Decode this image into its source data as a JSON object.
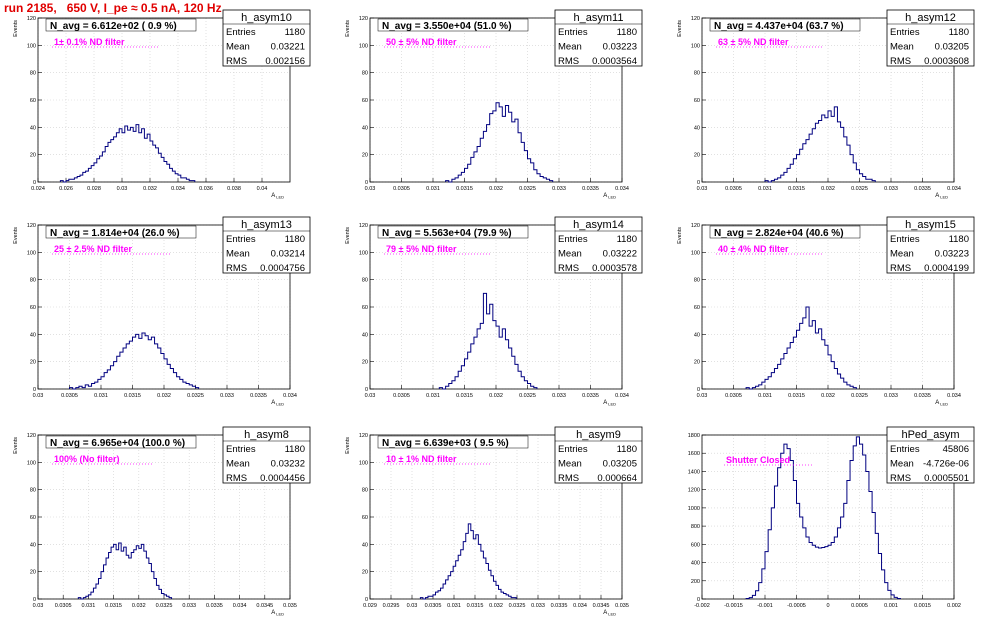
{
  "page": {
    "title": "run 2185,   650 V, I_pe ≈ 0.5 nA, 120 Hz"
  },
  "colors": {
    "histogram": "#000080",
    "annotation": "#ff00ff",
    "title": "#e00000",
    "grid": "#cfcfcf"
  },
  "stats_labels": {
    "entries": "Entries",
    "mean": "Mean",
    "rms": "RMS"
  },
  "chart_data": [
    {
      "type": "bar",
      "name": "h_asym10",
      "navg": "N_avg = 6.612e+02 ( 0.9 %)",
      "annotation": "1± 0.1% ND filter",
      "ylabel": "Events",
      "xlabel": "A_LED",
      "xlim": [
        0.024,
        0.042
      ],
      "ylim": [
        0,
        120
      ],
      "xticks": [
        0.024,
        0.026,
        0.028,
        0.03,
        0.032,
        0.034,
        0.036,
        0.038,
        0.04
      ],
      "xtick_labels": [
        "0.024",
        "0.026",
        "0.028",
        "0.03",
        "0.032",
        "0.034",
        "0.036",
        "0.038",
        "0.04"
      ],
      "yticks": [
        0,
        20,
        40,
        60,
        80,
        100,
        120
      ],
      "grid": true,
      "stats": {
        "entries": "1180",
        "mean": "0.03221",
        "rms": "0.002156"
      },
      "bins": {
        "start": 0.0256,
        "width": 0.0002,
        "values": [
          1,
          0,
          1,
          2,
          2,
          3,
          4,
          5,
          7,
          8,
          10,
          12,
          14,
          17,
          19,
          22,
          26,
          29,
          31,
          33,
          36,
          39,
          36,
          41,
          38,
          40,
          37,
          42,
          36,
          39,
          32,
          35,
          30,
          27,
          25,
          21,
          18,
          15,
          13,
          10,
          8,
          6,
          5,
          3,
          3,
          2,
          1,
          1
        ]
      }
    },
    {
      "type": "bar",
      "name": "h_asym11",
      "navg": "N_avg = 3.550e+04 (51.0 %)",
      "annotation": "50 ± 5% ND filter",
      "ylabel": "Events",
      "xlabel": "A_LED",
      "xlim": [
        0.03,
        0.034
      ],
      "ylim": [
        0,
        120
      ],
      "xticks": [
        0.03,
        0.0305,
        0.031,
        0.0315,
        0.032,
        0.0325,
        0.033,
        0.0335,
        0.034
      ],
      "xtick_labels": [
        "0.03",
        "0.0305",
        "0.031",
        "0.0315",
        "0.032",
        "0.0325",
        "0.033",
        "0.0335",
        "0.034"
      ],
      "yticks": [
        0,
        20,
        40,
        60,
        80,
        100,
        120
      ],
      "grid": true,
      "stats": {
        "entries": "1180",
        "mean": "0.03223",
        "rms": "0.0003564"
      },
      "bins": {
        "start": 0.0312,
        "width": 5e-05,
        "values": [
          1,
          0,
          2,
          3,
          5,
          7,
          10,
          13,
          18,
          22,
          26,
          32,
          37,
          42,
          50,
          52,
          58,
          55,
          48,
          56,
          51,
          44,
          46,
          36,
          29,
          23,
          17,
          14,
          9,
          6,
          4,
          3,
          2,
          1
        ]
      }
    },
    {
      "type": "bar",
      "name": "h_asym12",
      "navg": "N_avg = 4.437e+04 (63.7 %)",
      "annotation": "63 ± 5% ND filter",
      "ylabel": "Events",
      "xlabel": "A_LED",
      "xlim": [
        0.03,
        0.034
      ],
      "ylim": [
        0,
        120
      ],
      "xticks": [
        0.03,
        0.0305,
        0.031,
        0.0315,
        0.032,
        0.0325,
        0.033,
        0.0335,
        0.034
      ],
      "xtick_labels": [
        "0.03",
        "0.0305",
        "0.031",
        "0.0315",
        "0.032",
        "0.0325",
        "0.033",
        "0.0335",
        "0.034"
      ],
      "yticks": [
        0,
        20,
        40,
        60,
        80,
        100,
        120
      ],
      "grid": true,
      "stats": {
        "entries": "1180",
        "mean": "0.03205",
        "rms": "0.0003608"
      },
      "bins": {
        "start": 0.031,
        "width": 5e-05,
        "values": [
          1,
          0,
          1,
          2,
          3,
          5,
          7,
          10,
          13,
          17,
          20,
          24,
          28,
          31,
          35,
          39,
          43,
          45,
          49,
          47,
          52,
          48,
          55,
          44,
          40,
          33,
          27,
          20,
          14,
          9,
          6,
          4,
          2,
          2,
          1
        ]
      }
    },
    {
      "type": "bar",
      "name": "h_asym13",
      "navg": "N_avg = 1.814e+04 (26.0 %)",
      "annotation": "25 ± 2.5% ND filter",
      "ylabel": "Events",
      "xlabel": "A_LED",
      "xlim": [
        0.03,
        0.034
      ],
      "ylim": [
        0,
        120
      ],
      "xticks": [
        0.03,
        0.0305,
        0.031,
        0.0315,
        0.032,
        0.0325,
        0.033,
        0.0335,
        0.034
      ],
      "xtick_labels": [
        "0.03",
        "0.0305",
        "0.031",
        "0.0315",
        "0.032",
        "0.0325",
        "0.033",
        "0.0335",
        "0.034"
      ],
      "yticks": [
        0,
        20,
        40,
        60,
        80,
        100,
        120
      ],
      "grid": true,
      "stats": {
        "entries": "1180",
        "mean": "0.03214",
        "rms": "0.0004756"
      },
      "bins": {
        "start": 0.0305,
        "width": 5e-05,
        "values": [
          1,
          0,
          1,
          2,
          1,
          3,
          2,
          4,
          5,
          7,
          9,
          12,
          14,
          17,
          20,
          24,
          27,
          30,
          33,
          35,
          38,
          40,
          37,
          41,
          39,
          36,
          38,
          33,
          30,
          26,
          22,
          18,
          15,
          12,
          9,
          7,
          5,
          4,
          3,
          2,
          1
        ]
      }
    },
    {
      "type": "bar",
      "name": "h_asym14",
      "navg": "N_avg = 5.563e+04 (79.9 %)",
      "annotation": "79 ± 5% ND filter",
      "ylabel": "Events",
      "xlabel": "A_LED",
      "xlim": [
        0.03,
        0.034
      ],
      "ylim": [
        0,
        120
      ],
      "xticks": [
        0.03,
        0.0305,
        0.031,
        0.0315,
        0.032,
        0.0325,
        0.033,
        0.0335,
        0.034
      ],
      "xtick_labels": [
        "0.03",
        "0.0305",
        "0.031",
        "0.0315",
        "0.032",
        "0.0325",
        "0.033",
        "0.0335",
        "0.034"
      ],
      "yticks": [
        0,
        20,
        40,
        60,
        80,
        100,
        120
      ],
      "grid": true,
      "stats": {
        "entries": "1180",
        "mean": "0.03222",
        "rms": "0.0003578"
      },
      "bins": {
        "start": 0.0311,
        "width": 5e-05,
        "values": [
          1,
          0,
          2,
          4,
          6,
          9,
          13,
          17,
          22,
          27,
          33,
          38,
          44,
          48,
          70,
          55,
          62,
          50,
          46,
          38,
          44,
          36,
          30,
          24,
          18,
          13,
          9,
          6,
          4,
          2,
          1
        ]
      }
    },
    {
      "type": "bar",
      "name": "h_asym15",
      "navg": "N_avg = 2.824e+04 (40.6 %)",
      "annotation": "40 ± 4% ND filter",
      "ylabel": "Events",
      "xlabel": "A_LED",
      "xlim": [
        0.03,
        0.034
      ],
      "ylim": [
        0,
        120
      ],
      "xticks": [
        0.03,
        0.0305,
        0.031,
        0.0315,
        0.032,
        0.0325,
        0.033,
        0.0335,
        0.034
      ],
      "xtick_labels": [
        "0.03",
        "0.0305",
        "0.031",
        "0.0315",
        "0.032",
        "0.0325",
        "0.033",
        "0.0335",
        "0.034"
      ],
      "yticks": [
        0,
        20,
        40,
        60,
        80,
        100,
        120
      ],
      "grid": true,
      "stats": {
        "entries": "1180",
        "mean": "0.03223",
        "rms": "0.0004199"
      },
      "bins": {
        "start": 0.0307,
        "width": 5e-05,
        "values": [
          1,
          0,
          1,
          2,
          3,
          5,
          7,
          9,
          12,
          15,
          18,
          22,
          26,
          30,
          34,
          38,
          43,
          48,
          52,
          60,
          46,
          50,
          41,
          44,
          36,
          32,
          25,
          20,
          15,
          11,
          8,
          5,
          3,
          2,
          1
        ]
      }
    },
    {
      "type": "bar",
      "name": "h_asym8",
      "navg": "N_avg = 6.965e+04 (100.0 %)",
      "annotation": "100% (No filter)",
      "ylabel": "Events",
      "xlabel": "A_LED",
      "xlim": [
        0.03,
        0.035
      ],
      "ylim": [
        0,
        120
      ],
      "xticks": [
        0.03,
        0.0305,
        0.031,
        0.0315,
        0.032,
        0.0325,
        0.033,
        0.0335,
        0.034,
        0.0345,
        0.035
      ],
      "xtick_labels": [
        "0.03",
        "0.0305",
        "0.031",
        "0.0315",
        "0.032",
        "0.0325",
        "0.033",
        "0.0335",
        "0.034",
        "0.0345",
        "0.035"
      ],
      "yticks": [
        0,
        20,
        40,
        60,
        80,
        100,
        120
      ],
      "grid": true,
      "stats": {
        "entries": "1180",
        "mean": "0.03232",
        "rms": "0.0004456"
      },
      "bins": {
        "start": 0.0308,
        "width": 5e-05,
        "values": [
          1,
          0,
          1,
          2,
          3,
          5,
          8,
          11,
          15,
          20,
          25,
          30,
          34,
          38,
          40,
          36,
          41,
          35,
          38,
          32,
          30,
          34,
          36,
          39,
          37,
          40,
          35,
          30,
          26,
          20,
          15,
          10,
          7,
          4,
          3,
          2,
          1
        ]
      }
    },
    {
      "type": "bar",
      "name": "h_asym9",
      "navg": "N_avg = 6.639e+03 ( 9.5 %)",
      "annotation": "10 ± 1% ND filter",
      "ylabel": "Events",
      "xlabel": "A_LED",
      "xlim": [
        0.029,
        0.035
      ],
      "ylim": [
        0,
        120
      ],
      "xticks": [
        0.029,
        0.0295,
        0.03,
        0.0305,
        0.031,
        0.0315,
        0.032,
        0.0325,
        0.033,
        0.0335,
        0.034,
        0.0345,
        0.035
      ],
      "xtick_labels": [
        "0.029",
        "0.0295",
        "0.03",
        "0.0305",
        "0.031",
        "0.0315",
        "0.032",
        "0.0325",
        "0.033",
        "0.0335",
        "0.034",
        "0.0345",
        "0.035"
      ],
      "yticks": [
        0,
        20,
        40,
        60,
        80,
        100,
        120
      ],
      "grid": true,
      "stats": {
        "entries": "1180",
        "mean": "0.03205",
        "rms": "0.000664"
      },
      "bins": {
        "start": 0.0302,
        "width": 6e-05,
        "values": [
          1,
          0,
          1,
          2,
          2,
          3,
          5,
          6,
          8,
          11,
          14,
          17,
          20,
          24,
          28,
          32,
          36,
          42,
          48,
          55,
          50,
          44,
          47,
          40,
          35,
          30,
          26,
          21,
          17,
          13,
          10,
          7,
          5,
          4,
          3,
          2,
          1,
          1
        ]
      }
    },
    {
      "type": "bar",
      "name": "hPed_asym",
      "navg": "",
      "annotation": "Shutter Closed",
      "ylabel": "",
      "xlabel": "",
      "xlim": [
        -0.002,
        0.002
      ],
      "ylim": [
        0,
        1800
      ],
      "xticks": [
        -0.002,
        -0.0015,
        -0.001,
        -0.0005,
        0,
        0.0005,
        0.001,
        0.0015,
        0.002
      ],
      "xtick_labels": [
        "-0.002",
        "-0.0015",
        "-0.001",
        "-0.0005",
        "0",
        "0.0005",
        "0.001",
        "0.0015",
        "0.002"
      ],
      "yticks": [
        0,
        200,
        400,
        600,
        800,
        1000,
        1200,
        1400,
        1600,
        1800
      ],
      "grid": true,
      "stats": {
        "entries": "45806",
        "mean": "-4.726e-06",
        "rms": "0.0005501"
      },
      "bins": {
        "start": -0.0013,
        "width": 5e-05,
        "values": [
          5,
          15,
          40,
          90,
          180,
          330,
          520,
          760,
          1000,
          1240,
          1440,
          1600,
          1700,
          1650,
          1520,
          1300,
          1050,
          900,
          780,
          680,
          620,
          590,
          570,
          560,
          565,
          575,
          590,
          620,
          680,
          780,
          900,
          1050,
          1300,
          1520,
          1680,
          1780,
          1700,
          1580,
          1400,
          1180,
          950,
          720,
          500,
          320,
          180,
          95,
          45,
          18,
          6
        ]
      }
    }
  ]
}
